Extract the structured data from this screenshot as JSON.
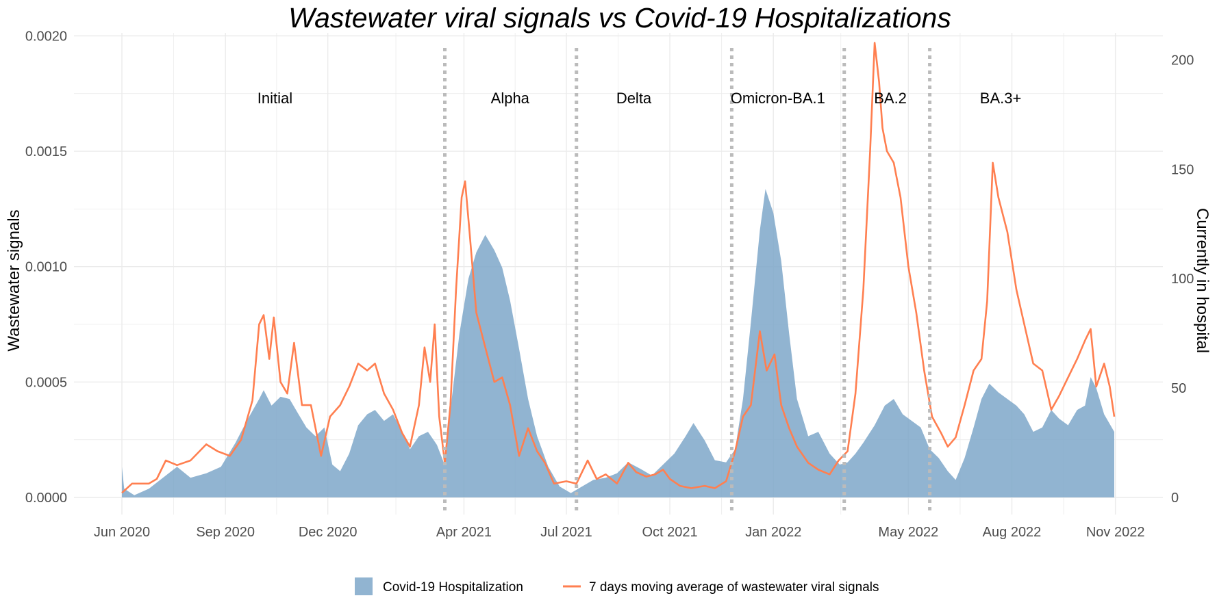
{
  "chart_data": {
    "type": "area+line",
    "title": "Wastewater viral signals vs Covid-19 Hospitalizations",
    "ylabel_left": "Wastewater signals",
    "ylabel_right": "Currently in hospital",
    "xlabel": "",
    "x_range": [
      "2020-06-01",
      "2022-10-31"
    ],
    "ylim_left": [
      0,
      0.00201
    ],
    "ylim_right": [
      0,
      212
    ],
    "x_ticks": [
      {
        "label": "Jun 2020",
        "date": "2020-06-01"
      },
      {
        "label": "Sep 2020",
        "date": "2020-09-01"
      },
      {
        "label": "Dec 2020",
        "date": "2020-12-01"
      },
      {
        "label": "Apr 2021",
        "date": "2021-04-01"
      },
      {
        "label": "Jul 2021",
        "date": "2021-07-01"
      },
      {
        "label": "Oct 2021",
        "date": "2021-10-01"
      },
      {
        "label": "Jan 2022",
        "date": "2022-01-01"
      },
      {
        "label": "May 2022",
        "date": "2022-05-01"
      },
      {
        "label": "Aug 2022",
        "date": "2022-08-01"
      },
      {
        "label": "Nov 2022",
        "date": "2022-11-01"
      }
    ],
    "y_ticks_left": [
      {
        "label": "0.0000",
        "value": 0
      },
      {
        "label": "0.0005",
        "value": 0.0005
      },
      {
        "label": "0.0010",
        "value": 0.001
      },
      {
        "label": "0.0015",
        "value": 0.0015
      },
      {
        "label": "0.0020",
        "value": 0.002
      }
    ],
    "y_ticks_right": [
      {
        "label": "0",
        "value": 0
      },
      {
        "label": "50",
        "value": 50
      },
      {
        "label": "100",
        "value": 100
      },
      {
        "label": "150",
        "value": 150
      },
      {
        "label": "200",
        "value": 200
      }
    ],
    "period_boundaries": [
      "2021-03-15",
      "2021-07-10",
      "2021-11-25",
      "2022-03-05",
      "2022-05-20"
    ],
    "periods": [
      {
        "label": "Initial",
        "center": "2020-10-15"
      },
      {
        "label": "Alpha",
        "center": "2021-05-12"
      },
      {
        "label": "Delta",
        "center": "2021-08-30"
      },
      {
        "label": "Omicron-BA.1",
        "center": "2022-01-05"
      },
      {
        "label": "BA.2",
        "center": "2022-04-15"
      },
      {
        "label": "BA.3+",
        "center": "2022-07-22"
      }
    ],
    "colors": {
      "hospital": "#7ea7c9",
      "wastewater": "#ff7f50",
      "period_line": "#bbbbbb",
      "grid": "#ebebeb"
    },
    "series": [
      {
        "name": "Covid-19 Hospitalization",
        "type": "area",
        "axis": "right",
        "points": [
          [
            "2020-06-01",
            14
          ],
          [
            "2020-06-03",
            4
          ],
          [
            "2020-06-12",
            1
          ],
          [
            "2020-06-25",
            4
          ],
          [
            "2020-07-10",
            10
          ],
          [
            "2020-07-20",
            14
          ],
          [
            "2020-08-01",
            9
          ],
          [
            "2020-08-15",
            11
          ],
          [
            "2020-08-28",
            14
          ],
          [
            "2020-09-10",
            25
          ],
          [
            "2020-09-20",
            35
          ],
          [
            "2020-10-01",
            45
          ],
          [
            "2020-10-05",
            49
          ],
          [
            "2020-10-12",
            42
          ],
          [
            "2020-10-20",
            46
          ],
          [
            "2020-10-28",
            45
          ],
          [
            "2020-11-05",
            38
          ],
          [
            "2020-11-12",
            32
          ],
          [
            "2020-11-20",
            28
          ],
          [
            "2020-11-28",
            32
          ],
          [
            "2020-12-05",
            15
          ],
          [
            "2020-12-12",
            12
          ],
          [
            "2020-12-20",
            20
          ],
          [
            "2020-12-28",
            33
          ],
          [
            "2021-01-05",
            38
          ],
          [
            "2021-01-12",
            40
          ],
          [
            "2021-01-20",
            35
          ],
          [
            "2021-01-28",
            38
          ],
          [
            "2021-02-05",
            30
          ],
          [
            "2021-02-12",
            22
          ],
          [
            "2021-02-20",
            28
          ],
          [
            "2021-02-28",
            30
          ],
          [
            "2021-03-08",
            24
          ],
          [
            "2021-03-14",
            16
          ],
          [
            "2021-03-20",
            40
          ],
          [
            "2021-03-28",
            75
          ],
          [
            "2021-04-05",
            100
          ],
          [
            "2021-04-12",
            112
          ],
          [
            "2021-04-20",
            120
          ],
          [
            "2021-04-28",
            113
          ],
          [
            "2021-05-05",
            105
          ],
          [
            "2021-05-12",
            90
          ],
          [
            "2021-05-20",
            68
          ],
          [
            "2021-05-28",
            45
          ],
          [
            "2021-06-05",
            28
          ],
          [
            "2021-06-15",
            14
          ],
          [
            "2021-06-25",
            5
          ],
          [
            "2021-07-05",
            2
          ],
          [
            "2021-07-15",
            5
          ],
          [
            "2021-07-25",
            8
          ],
          [
            "2021-08-05",
            9
          ],
          [
            "2021-08-15",
            11
          ],
          [
            "2021-08-25",
            16
          ],
          [
            "2021-09-05",
            13
          ],
          [
            "2021-09-15",
            10
          ],
          [
            "2021-09-25",
            15
          ],
          [
            "2021-10-05",
            20
          ],
          [
            "2021-10-15",
            28
          ],
          [
            "2021-10-22",
            34
          ],
          [
            "2021-11-01",
            26
          ],
          [
            "2021-11-10",
            17
          ],
          [
            "2021-11-20",
            16
          ],
          [
            "2021-11-28",
            22
          ],
          [
            "2021-12-05",
            45
          ],
          [
            "2021-12-12",
            80
          ],
          [
            "2021-12-20",
            122
          ],
          [
            "2021-12-25",
            141
          ],
          [
            "2022-01-01",
            130
          ],
          [
            "2022-01-08",
            108
          ],
          [
            "2022-01-15",
            75
          ],
          [
            "2022-01-22",
            45
          ],
          [
            "2022-02-01",
            28
          ],
          [
            "2022-02-10",
            30
          ],
          [
            "2022-02-20",
            20
          ],
          [
            "2022-03-01",
            15
          ],
          [
            "2022-03-08",
            16
          ],
          [
            "2022-03-15",
            20
          ],
          [
            "2022-03-22",
            25
          ],
          [
            "2022-04-01",
            33
          ],
          [
            "2022-04-10",
            42
          ],
          [
            "2022-04-18",
            45
          ],
          [
            "2022-04-26",
            38
          ],
          [
            "2022-05-04",
            35
          ],
          [
            "2022-05-12",
            32
          ],
          [
            "2022-05-20",
            22
          ],
          [
            "2022-05-28",
            18
          ],
          [
            "2022-06-05",
            12
          ],
          [
            "2022-06-12",
            8
          ],
          [
            "2022-06-20",
            18
          ],
          [
            "2022-06-28",
            32
          ],
          [
            "2022-07-05",
            45
          ],
          [
            "2022-07-12",
            52
          ],
          [
            "2022-07-20",
            48
          ],
          [
            "2022-07-28",
            45
          ],
          [
            "2022-08-05",
            42
          ],
          [
            "2022-08-12",
            38
          ],
          [
            "2022-08-20",
            30
          ],
          [
            "2022-08-28",
            32
          ],
          [
            "2022-09-05",
            40
          ],
          [
            "2022-09-12",
            36
          ],
          [
            "2022-09-20",
            33
          ],
          [
            "2022-09-28",
            40
          ],
          [
            "2022-10-05",
            42
          ],
          [
            "2022-10-10",
            55
          ],
          [
            "2022-10-15",
            50
          ],
          [
            "2022-10-22",
            38
          ],
          [
            "2022-10-31",
            30
          ]
        ]
      },
      {
        "name": "7 days moving average of wastewater viral signals",
        "type": "line",
        "axis": "left",
        "points": [
          [
            "2020-06-01",
            2e-05
          ],
          [
            "2020-06-10",
            6e-05
          ],
          [
            "2020-06-25",
            6e-05
          ],
          [
            "2020-07-02",
            8e-05
          ],
          [
            "2020-07-10",
            0.00016
          ],
          [
            "2020-07-20",
            0.00014
          ],
          [
            "2020-08-01",
            0.00016
          ],
          [
            "2020-08-15",
            0.00023
          ],
          [
            "2020-08-25",
            0.0002
          ],
          [
            "2020-09-05",
            0.00018
          ],
          [
            "2020-09-15",
            0.00025
          ],
          [
            "2020-09-25",
            0.00042
          ],
          [
            "2020-10-01",
            0.00075
          ],
          [
            "2020-10-05",
            0.00079
          ],
          [
            "2020-10-10",
            0.0006
          ],
          [
            "2020-10-14",
            0.00078
          ],
          [
            "2020-10-20",
            0.0005
          ],
          [
            "2020-10-26",
            0.00045
          ],
          [
            "2020-11-01",
            0.00067
          ],
          [
            "2020-11-08",
            0.0004
          ],
          [
            "2020-11-16",
            0.0004
          ],
          [
            "2020-11-25",
            0.00018
          ],
          [
            "2020-12-03",
            0.00035
          ],
          [
            "2020-12-12",
            0.0004
          ],
          [
            "2020-12-20",
            0.00048
          ],
          [
            "2020-12-28",
            0.00058
          ],
          [
            "2021-01-05",
            0.00055
          ],
          [
            "2021-01-12",
            0.00058
          ],
          [
            "2021-01-20",
            0.00045
          ],
          [
            "2021-01-28",
            0.00038
          ],
          [
            "2021-02-05",
            0.00028
          ],
          [
            "2021-02-12",
            0.00022
          ],
          [
            "2021-02-20",
            0.0004
          ],
          [
            "2021-02-25",
            0.00065
          ],
          [
            "2021-03-02",
            0.0005
          ],
          [
            "2021-03-06",
            0.00075
          ],
          [
            "2021-03-10",
            0.00035
          ],
          [
            "2021-03-15",
            0.00015
          ],
          [
            "2021-03-20",
            0.0004
          ],
          [
            "2021-03-25",
            0.0009
          ],
          [
            "2021-03-30",
            0.0013
          ],
          [
            "2021-04-02",
            0.00137
          ],
          [
            "2021-04-06",
            0.00115
          ],
          [
            "2021-04-12",
            0.0008
          ],
          [
            "2021-04-20",
            0.00065
          ],
          [
            "2021-04-28",
            0.0005
          ],
          [
            "2021-05-05",
            0.00052
          ],
          [
            "2021-05-12",
            0.0004
          ],
          [
            "2021-05-20",
            0.00018
          ],
          [
            "2021-05-28",
            0.0003
          ],
          [
            "2021-06-05",
            0.0002
          ],
          [
            "2021-06-12",
            0.00015
          ],
          [
            "2021-06-20",
            6e-05
          ],
          [
            "2021-07-01",
            7e-05
          ],
          [
            "2021-07-10",
            6e-05
          ],
          [
            "2021-07-20",
            0.00016
          ],
          [
            "2021-07-28",
            8e-05
          ],
          [
            "2021-08-05",
            0.0001
          ],
          [
            "2021-08-15",
            6e-05
          ],
          [
            "2021-08-25",
            0.00015
          ],
          [
            "2021-09-01",
            0.00011
          ],
          [
            "2021-09-10",
            9e-05
          ],
          [
            "2021-09-18",
            0.0001
          ],
          [
            "2021-09-25",
            0.00012
          ],
          [
            "2021-10-01",
            8e-05
          ],
          [
            "2021-10-10",
            5e-05
          ],
          [
            "2021-10-20",
            4e-05
          ],
          [
            "2021-11-01",
            5e-05
          ],
          [
            "2021-11-10",
            4e-05
          ],
          [
            "2021-11-20",
            7e-05
          ],
          [
            "2021-11-28",
            0.0002
          ],
          [
            "2021-12-05",
            0.00035
          ],
          [
            "2021-12-12",
            0.0004
          ],
          [
            "2021-12-20",
            0.00072
          ],
          [
            "2021-12-26",
            0.00055
          ],
          [
            "2022-01-02",
            0.00062
          ],
          [
            "2022-01-08",
            0.0004
          ],
          [
            "2022-01-15",
            0.0003
          ],
          [
            "2022-01-22",
            0.00022
          ],
          [
            "2022-02-01",
            0.00015
          ],
          [
            "2022-02-10",
            0.00012
          ],
          [
            "2022-02-20",
            0.0001
          ],
          [
            "2022-02-28",
            0.00016
          ],
          [
            "2022-03-08",
            0.0002
          ],
          [
            "2022-03-15",
            0.00045
          ],
          [
            "2022-03-22",
            0.0009
          ],
          [
            "2022-03-28",
            0.0015
          ],
          [
            "2022-04-01",
            0.00197
          ],
          [
            "2022-04-05",
            0.0018
          ],
          [
            "2022-04-08",
            0.0016
          ],
          [
            "2022-04-12",
            0.0015
          ],
          [
            "2022-04-18",
            0.00145
          ],
          [
            "2022-04-24",
            0.0013
          ],
          [
            "2022-05-01",
            0.001
          ],
          [
            "2022-05-08",
            0.0008
          ],
          [
            "2022-05-15",
            0.00055
          ],
          [
            "2022-05-22",
            0.00035
          ],
          [
            "2022-05-30",
            0.00028
          ],
          [
            "2022-06-05",
            0.00022
          ],
          [
            "2022-06-12",
            0.00026
          ],
          [
            "2022-06-20",
            0.0004
          ],
          [
            "2022-06-28",
            0.00055
          ],
          [
            "2022-07-05",
            0.0006
          ],
          [
            "2022-07-10",
            0.00085
          ],
          [
            "2022-07-15",
            0.00145
          ],
          [
            "2022-07-20",
            0.0013
          ],
          [
            "2022-07-28",
            0.00115
          ],
          [
            "2022-08-05",
            0.0009
          ],
          [
            "2022-08-12",
            0.00075
          ],
          [
            "2022-08-20",
            0.00058
          ],
          [
            "2022-08-28",
            0.00055
          ],
          [
            "2022-09-05",
            0.00038
          ],
          [
            "2022-09-12",
            0.00044
          ],
          [
            "2022-09-20",
            0.00052
          ],
          [
            "2022-09-28",
            0.0006
          ],
          [
            "2022-10-05",
            0.00068
          ],
          [
            "2022-10-10",
            0.00073
          ],
          [
            "2022-10-15",
            0.00048
          ],
          [
            "2022-10-22",
            0.00058
          ],
          [
            "2022-10-27",
            0.00048
          ],
          [
            "2022-10-31",
            0.00035
          ]
        ]
      }
    ],
    "legend": [
      {
        "label": "Covid-19 Hospitalization",
        "kind": "area"
      },
      {
        "label": "7 days moving average of wastewater viral signals",
        "kind": "line"
      }
    ],
    "legend_position": "bottom"
  }
}
